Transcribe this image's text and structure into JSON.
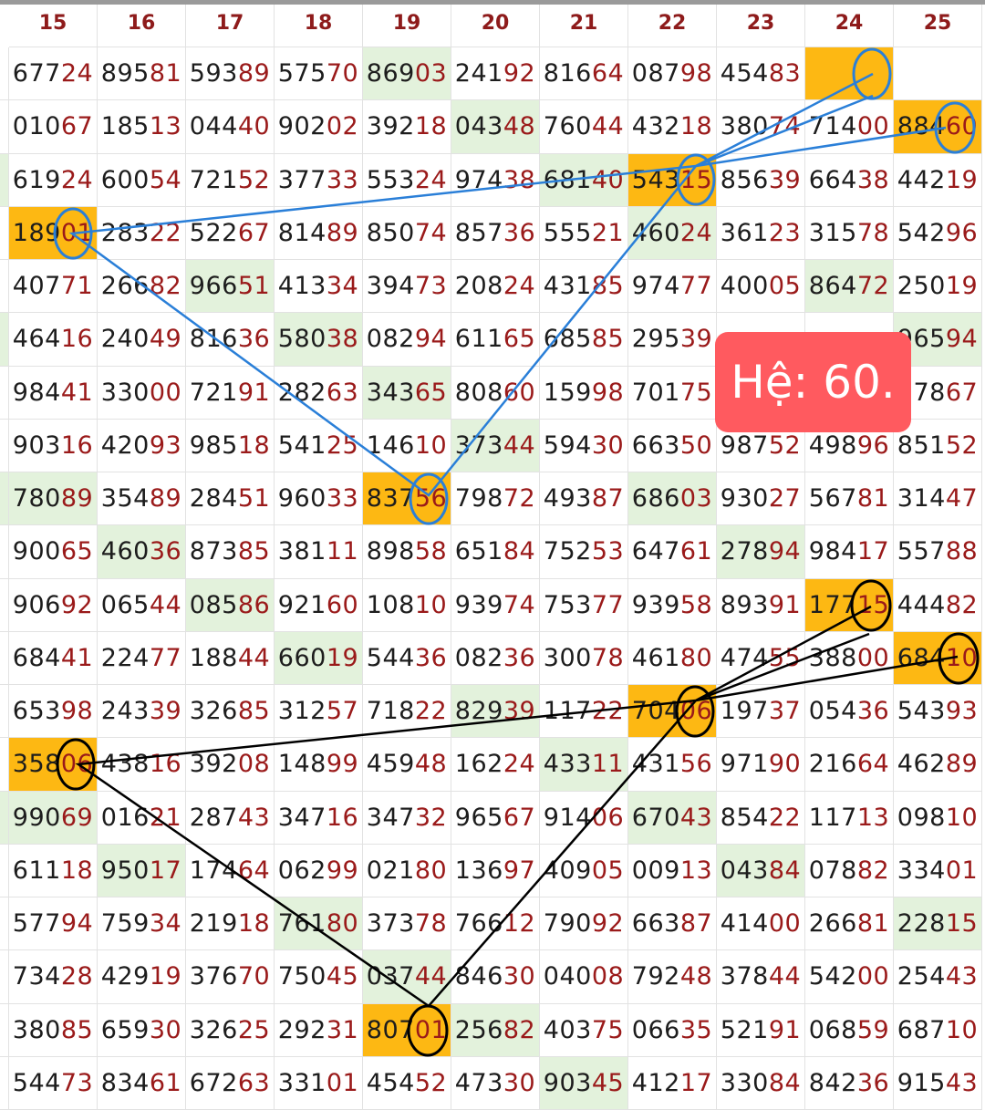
{
  "headers": [
    "15",
    "16",
    "17",
    "18",
    "19",
    "20",
    "21",
    "22",
    "23",
    "24",
    "25"
  ],
  "rows": [
    [
      "67724",
      "89581",
      "59389",
      "57570",
      "86903",
      "24192",
      "81664",
      "08798",
      "45483",
      "",
      ""
    ],
    [
      "01067",
      "18513",
      "04440",
      "90202",
      "39218",
      "04348",
      "76044",
      "43218",
      "38074",
      "71400",
      "88460"
    ],
    [
      "61924",
      "60054",
      "72152",
      "37733",
      "55324",
      "97438",
      "68140",
      "54315",
      "85639",
      "66438",
      "44219"
    ],
    [
      "18901",
      "28322",
      "52267",
      "81489",
      "85074",
      "85736",
      "55521",
      "46024",
      "36123",
      "31578",
      "54296"
    ],
    [
      "40771",
      "26682",
      "96651",
      "41334",
      "39473",
      "20824",
      "43185",
      "97477",
      "40005",
      "86472",
      "25019"
    ],
    [
      "46416",
      "24049",
      "81636",
      "58038",
      "08294",
      "61165",
      "68585",
      "29539",
      "",
      "",
      "96594"
    ],
    [
      "98441",
      "33000",
      "72191",
      "28263",
      "34365",
      "80860",
      "15998",
      "70175",
      "",
      "",
      "97867"
    ],
    [
      "90316",
      "42093",
      "98518",
      "54125",
      "14610",
      "37344",
      "59430",
      "66350",
      "98752",
      "49896",
      "85152"
    ],
    [
      "78089",
      "35489",
      "28451",
      "96033",
      "83756",
      "79872",
      "49387",
      "68603",
      "93027",
      "56781",
      "31447"
    ],
    [
      "90065",
      "46036",
      "87385",
      "38111",
      "89858",
      "65184",
      "75253",
      "64761",
      "27894",
      "98417",
      "55788"
    ],
    [
      "90692",
      "06544",
      "08586",
      "92160",
      "10810",
      "93974",
      "75377",
      "93958",
      "89391",
      "17715",
      "44482"
    ],
    [
      "68441",
      "22477",
      "18844",
      "66019",
      "54436",
      "08236",
      "30078",
      "46180",
      "47455",
      "38800",
      "68410"
    ],
    [
      "65398",
      "24339",
      "32685",
      "31257",
      "71822",
      "82939",
      "11722",
      "70406",
      "19737",
      "05436",
      "54393"
    ],
    [
      "35806",
      "43816",
      "39208",
      "14899",
      "45948",
      "16224",
      "43311",
      "43156",
      "97190",
      "21664",
      "46289"
    ],
    [
      "99069",
      "01621",
      "28743",
      "34716",
      "34732",
      "96567",
      "91406",
      "67043",
      "85422",
      "11713",
      "09810"
    ],
    [
      "61118",
      "95017",
      "17464",
      "06299",
      "02180",
      "13697",
      "40905",
      "00913",
      "04384",
      "07882",
      "33401"
    ],
    [
      "57794",
      "75934",
      "21918",
      "76180",
      "37378",
      "76612",
      "79092",
      "66387",
      "41400",
      "26681",
      "22815"
    ],
    [
      "73428",
      "42919",
      "37670",
      "75045",
      "03744",
      "84630",
      "04008",
      "79248",
      "37844",
      "54200",
      "25443"
    ],
    [
      "38085",
      "65930",
      "32625",
      "29231",
      "80701",
      "25682",
      "40375",
      "06635",
      "52191",
      "06859",
      "68710"
    ],
    [
      "54473",
      "83461",
      "67263",
      "33101",
      "45452",
      "47330",
      "90345",
      "41217",
      "33084",
      "84236",
      "91543"
    ]
  ],
  "green_cells": [
    [
      0,
      4
    ],
    [
      1,
      5
    ],
    [
      2,
      6
    ],
    [
      3,
      7
    ],
    [
      4,
      2
    ],
    [
      4,
      9
    ],
    [
      5,
      3
    ],
    [
      5,
      10
    ],
    [
      6,
      4
    ],
    [
      7,
      5
    ],
    [
      8,
      0
    ],
    [
      8,
      7
    ],
    [
      9,
      1
    ],
    [
      9,
      8
    ],
    [
      10,
      2
    ],
    [
      11,
      3
    ],
    [
      11,
      10
    ],
    [
      12,
      5
    ],
    [
      13,
      6
    ],
    [
      14,
      0
    ],
    [
      14,
      7
    ],
    [
      15,
      1
    ],
    [
      15,
      8
    ],
    [
      16,
      3
    ],
    [
      16,
      10
    ],
    [
      17,
      4
    ],
    [
      18,
      5
    ],
    [
      19,
      6
    ]
  ],
  "yellow_cells": [
    [
      0,
      9
    ],
    [
      2,
      7
    ],
    [
      3,
      0
    ],
    [
      8,
      4
    ],
    [
      10,
      9
    ],
    [
      11,
      10
    ],
    [
      12,
      7
    ],
    [
      13,
      0
    ],
    [
      18,
      4
    ],
    [
      1,
      10
    ]
  ],
  "badge_text": "Hệ: 60.",
  "colors": {
    "header_text": "#8e1b1b",
    "digit_prefix": "#1d1d1d",
    "digit_suffix": "#9a1a1a",
    "green_bg": "#e3f2dc",
    "yellow_bg": "#fdb813",
    "blue_line": "#2a7fd8",
    "black_line": "#000000",
    "badge_bg": "#ff5a5f"
  }
}
